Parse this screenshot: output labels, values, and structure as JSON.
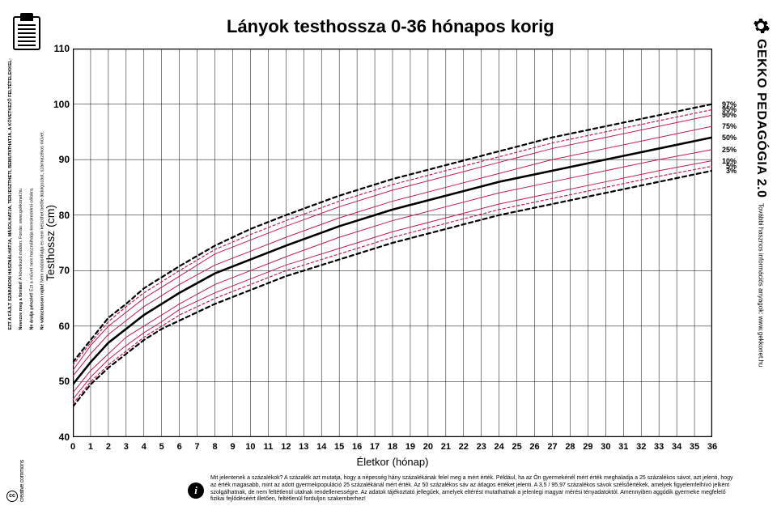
{
  "title": "Lányok testhossza 0-36 hónapos korig",
  "brand": {
    "main": "GEKKO PEDAGÓGIA 2.0",
    "sub": "További hasznos információs anyagok:  www.gekkonet.hu"
  },
  "left_side": {
    "caps": "EZT A FÁJLT SZABADON HASZNÁLHATJA, MÁSOLHATJA, TERJESZTHETI, BEMUTATHATJA, A KÖVETKEZŐ FELTÉTELEKKEL:",
    "attr_b": "Nevezze meg a forrást!",
    "attr": "A következő módon: Forrás: www.gekkonet.hu",
    "nc_b": "Ne árulja pénzért!",
    "nc": "Ezt a művet nem használhatja kereskedelmi célokra.",
    "nd_b": "Ne változtasson rajta!",
    "nd": "Nem módosíthatja és nem készíthet belőle átdolgozást, származékos művet."
  },
  "cc": "creative commons",
  "chart": {
    "type": "line",
    "x_label": "Életkor (hónap)",
    "y_label": "Testhossz (cm)",
    "xlim": [
      0,
      36
    ],
    "ylim": [
      40,
      110
    ],
    "xtick_step": 1,
    "ytick_step": 10,
    "background_color": "#ffffff",
    "grid_color": "#000000",
    "grid_width": 0.5,
    "border_width": 2.5,
    "series": [
      {
        "name": "3%",
        "color": "#000000",
        "width": 2.2,
        "dash": "5,4",
        "label": "3%",
        "data": [
          [
            0,
            45.5
          ],
          [
            1,
            49.5
          ],
          [
            2,
            52.5
          ],
          [
            3,
            55
          ],
          [
            4,
            57.5
          ],
          [
            5,
            59.5
          ],
          [
            6,
            61
          ],
          [
            8,
            64
          ],
          [
            10,
            66.5
          ],
          [
            12,
            69
          ],
          [
            15,
            72
          ],
          [
            18,
            75
          ],
          [
            21,
            77.5
          ],
          [
            24,
            80
          ],
          [
            27,
            82
          ],
          [
            30,
            84
          ],
          [
            33,
            86
          ],
          [
            36,
            88
          ]
        ]
      },
      {
        "name": "5%",
        "color": "#c2185b",
        "width": 1.2,
        "dash": "3,3",
        "label": "5%",
        "data": [
          [
            0,
            46
          ],
          [
            1,
            50
          ],
          [
            2,
            53
          ],
          [
            3,
            55.5
          ],
          [
            4,
            58
          ],
          [
            5,
            60
          ],
          [
            6,
            62
          ],
          [
            8,
            65
          ],
          [
            10,
            67.5
          ],
          [
            12,
            70
          ],
          [
            15,
            73
          ],
          [
            18,
            76
          ],
          [
            21,
            78.5
          ],
          [
            24,
            81
          ],
          [
            27,
            83
          ],
          [
            30,
            85
          ],
          [
            33,
            87
          ],
          [
            36,
            88.8
          ]
        ]
      },
      {
        "name": "10%",
        "color": "#c2185b",
        "width": 1.0,
        "dash": null,
        "label": "10%",
        "data": [
          [
            0,
            46.8
          ],
          [
            1,
            50.8
          ],
          [
            2,
            54
          ],
          [
            3,
            56.5
          ],
          [
            4,
            58.8
          ],
          [
            5,
            60.8
          ],
          [
            6,
            63
          ],
          [
            8,
            66
          ],
          [
            10,
            68.5
          ],
          [
            12,
            71
          ],
          [
            15,
            74
          ],
          [
            18,
            77
          ],
          [
            21,
            79.5
          ],
          [
            24,
            82
          ],
          [
            27,
            84
          ],
          [
            30,
            86
          ],
          [
            33,
            88
          ],
          [
            36,
            89.8
          ]
        ]
      },
      {
        "name": "25%",
        "color": "#c2185b",
        "width": 1.0,
        "dash": null,
        "label": "25%",
        "data": [
          [
            0,
            48
          ],
          [
            1,
            52
          ],
          [
            2,
            55
          ],
          [
            3,
            58
          ],
          [
            4,
            60
          ],
          [
            5,
            62
          ],
          [
            6,
            64
          ],
          [
            8,
            67.5
          ],
          [
            10,
            70
          ],
          [
            12,
            72.5
          ],
          [
            15,
            76
          ],
          [
            18,
            79
          ],
          [
            21,
            81.5
          ],
          [
            24,
            84
          ],
          [
            27,
            86
          ],
          [
            30,
            88
          ],
          [
            33,
            90
          ],
          [
            36,
            91.8
          ]
        ]
      },
      {
        "name": "50%",
        "color": "#000000",
        "width": 2.6,
        "dash": null,
        "label": "50%",
        "data": [
          [
            0,
            49.5
          ],
          [
            1,
            53.5
          ],
          [
            2,
            57
          ],
          [
            3,
            59.5
          ],
          [
            4,
            62
          ],
          [
            5,
            64
          ],
          [
            6,
            66
          ],
          [
            8,
            69.5
          ],
          [
            10,
            72
          ],
          [
            12,
            74.5
          ],
          [
            15,
            78
          ],
          [
            18,
            81
          ],
          [
            21,
            83.5
          ],
          [
            24,
            86
          ],
          [
            27,
            88
          ],
          [
            30,
            90
          ],
          [
            33,
            92
          ],
          [
            36,
            94
          ]
        ]
      },
      {
        "name": "75%",
        "color": "#c2185b",
        "width": 1.0,
        "dash": null,
        "label": "75%",
        "data": [
          [
            0,
            51
          ],
          [
            1,
            55
          ],
          [
            2,
            58.5
          ],
          [
            3,
            61
          ],
          [
            4,
            63.5
          ],
          [
            5,
            65.5
          ],
          [
            6,
            67.5
          ],
          [
            8,
            71
          ],
          [
            10,
            73.5
          ],
          [
            12,
            76
          ],
          [
            15,
            79.5
          ],
          [
            18,
            82.5
          ],
          [
            21,
            85
          ],
          [
            24,
            87.5
          ],
          [
            27,
            90
          ],
          [
            30,
            92
          ],
          [
            33,
            94
          ],
          [
            36,
            96
          ]
        ]
      },
      {
        "name": "90%",
        "color": "#c2185b",
        "width": 1.0,
        "dash": null,
        "label": "90%",
        "data": [
          [
            0,
            52
          ],
          [
            1,
            56.5
          ],
          [
            2,
            60
          ],
          [
            3,
            62.5
          ],
          [
            4,
            65
          ],
          [
            5,
            67
          ],
          [
            6,
            69
          ],
          [
            8,
            73
          ],
          [
            10,
            75.5
          ],
          [
            12,
            78
          ],
          [
            15,
            81.5
          ],
          [
            18,
            84.5
          ],
          [
            21,
            87
          ],
          [
            24,
            89.5
          ],
          [
            27,
            92
          ],
          [
            30,
            94
          ],
          [
            33,
            96
          ],
          [
            36,
            98
          ]
        ]
      },
      {
        "name": "95%",
        "color": "#c2185b",
        "width": 1.2,
        "dash": "3,3",
        "label": "95%",
        "data": [
          [
            0,
            53
          ],
          [
            1,
            57
          ],
          [
            2,
            60.8
          ],
          [
            3,
            63.5
          ],
          [
            4,
            66
          ],
          [
            5,
            68
          ],
          [
            6,
            70
          ],
          [
            8,
            73.8
          ],
          [
            10,
            76.5
          ],
          [
            12,
            79
          ],
          [
            15,
            82.5
          ],
          [
            18,
            85.5
          ],
          [
            21,
            88
          ],
          [
            24,
            90.5
          ],
          [
            27,
            93
          ],
          [
            30,
            95
          ],
          [
            33,
            97
          ],
          [
            36,
            99
          ]
        ]
      },
      {
        "name": "97%",
        "color": "#000000",
        "width": 2.2,
        "dash": "5,4",
        "label": "97%",
        "data": [
          [
            0,
            53.5
          ],
          [
            1,
            57.5
          ],
          [
            2,
            61.5
          ],
          [
            3,
            64
          ],
          [
            4,
            66.8
          ],
          [
            5,
            68.8
          ],
          [
            6,
            70.8
          ],
          [
            8,
            74.5
          ],
          [
            10,
            77.5
          ],
          [
            12,
            80
          ],
          [
            15,
            83.5
          ],
          [
            18,
            86.5
          ],
          [
            21,
            89
          ],
          [
            24,
            91.5
          ],
          [
            27,
            94
          ],
          [
            30,
            96
          ],
          [
            33,
            98
          ],
          [
            36,
            100
          ]
        ]
      }
    ],
    "pct_label_order": [
      "97%",
      "95%",
      "90%",
      "75%",
      "50%",
      "25%",
      "10%",
      "5%",
      "3%"
    ]
  },
  "footer": "Mit jelentenek a százalékok? A százalék azt mutatja, hogy a népesség hány százalékának felel meg a mért érték. Például, ha az Ön gyermekénél mért érték meghaladja a 25 százalékos sávot, azt jelenti, hogy az érték magasabb, mint az adott gyermekpopuláció 25 százalékánál mért érték. Az 50 százalékos sáv az átlagos értéket jelenti. A 3,5 / 95,97 százalékos sávok szélsőértékek, amelyek figyelemfelhívó jelként szolgálhatnak, de nem feltétlenül utalnak rendellenességre. Az adatok tájékoztató jellegűek, amelyek eltérést mutathatnak a jelenlegi magyar mérési tényadatoktól. Amennyiben aggódik gyermeke megfelelő fizikai fejlődéséért illetően, feltétlenül forduljon szakemberhez!"
}
